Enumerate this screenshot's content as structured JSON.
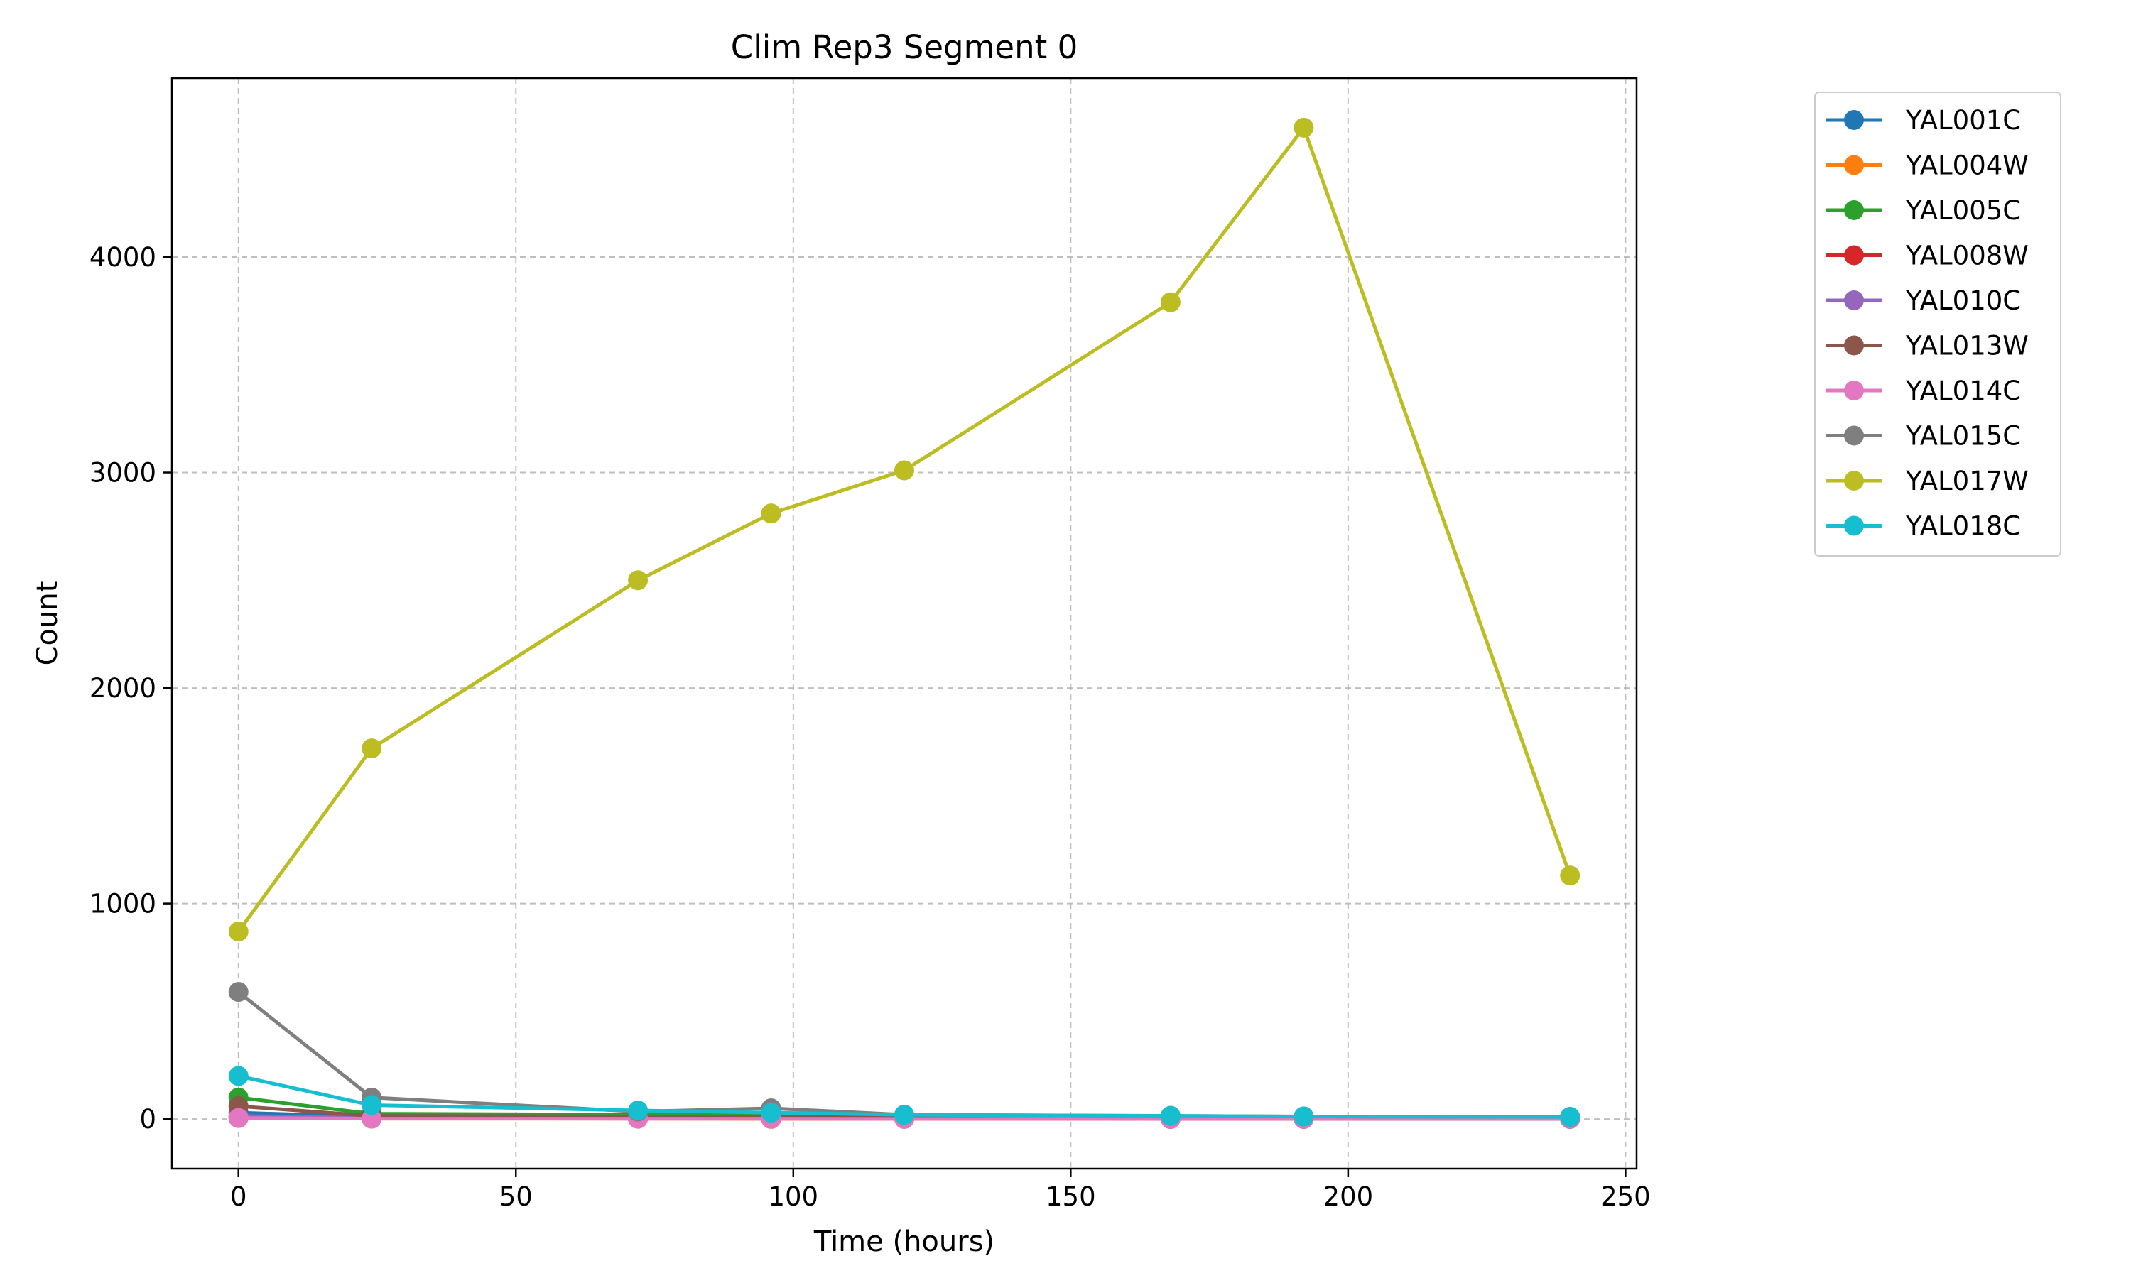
{
  "chart_data": {
    "type": "line",
    "title": "Clim Rep3 Segment 0",
    "xlabel": "Time (hours)",
    "ylabel": "Count",
    "xlim": [
      -12,
      252
    ],
    "ylim": [
      -230,
      4830
    ],
    "xticks": [
      0,
      50,
      100,
      150,
      200,
      250
    ],
    "yticks": [
      0,
      1000,
      2000,
      3000,
      4000
    ],
    "grid": true,
    "legend_position": "outside-right-top",
    "x": [
      0,
      24,
      72,
      96,
      120,
      168,
      192,
      240
    ],
    "series": [
      {
        "name": "YAL001C",
        "color": "#1f77b4",
        "values": [
          30,
          10,
          8,
          5,
          4,
          3,
          2,
          2
        ]
      },
      {
        "name": "YAL004W",
        "color": "#ff7f0e",
        "values": [
          5,
          2,
          2,
          1,
          1,
          1,
          1,
          1
        ]
      },
      {
        "name": "YAL005C",
        "color": "#2ca02c",
        "values": [
          100,
          25,
          20,
          18,
          15,
          12,
          10,
          10
        ]
      },
      {
        "name": "YAL008W",
        "color": "#d62728",
        "values": [
          10,
          3,
          2,
          2,
          2,
          1,
          1,
          1
        ]
      },
      {
        "name": "YAL010C",
        "color": "#9467bd",
        "values": [
          15,
          5,
          4,
          3,
          3,
          2,
          2,
          2
        ]
      },
      {
        "name": "YAL013W",
        "color": "#8c564b",
        "values": [
          60,
          15,
          12,
          10,
          8,
          7,
          6,
          6
        ]
      },
      {
        "name": "YAL014C",
        "color": "#e377c2",
        "values": [
          5,
          2,
          2,
          2,
          1,
          1,
          1,
          1
        ]
      },
      {
        "name": "YAL015C",
        "color": "#7f7f7f",
        "values": [
          590,
          100,
          35,
          50,
          20,
          15,
          12,
          10
        ]
      },
      {
        "name": "YAL017W",
        "color": "#bcbd22",
        "values": [
          870,
          1720,
          2500,
          2810,
          3010,
          3790,
          4600,
          1130
        ]
      },
      {
        "name": "YAL018C",
        "color": "#17becf",
        "values": [
          200,
          65,
          40,
          30,
          20,
          15,
          12,
          10
        ]
      }
    ]
  }
}
